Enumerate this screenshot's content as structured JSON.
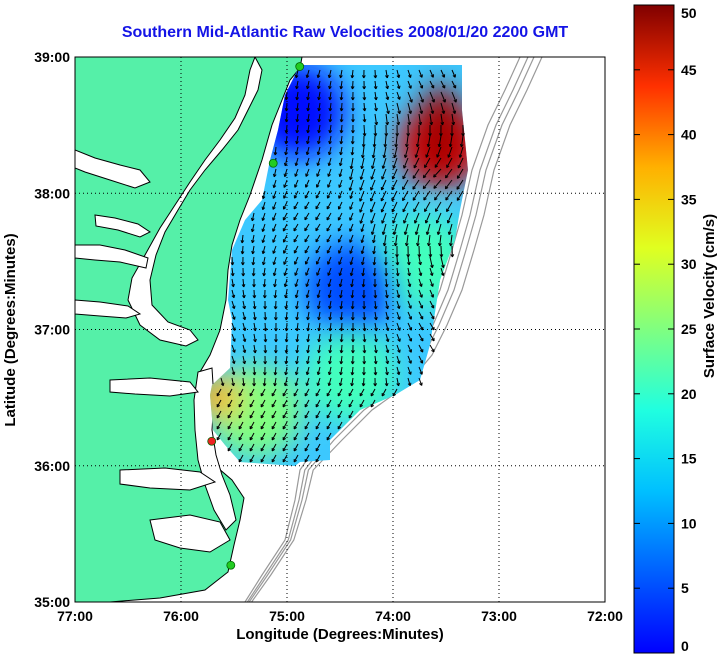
{
  "title": "Southern Mid-Atlantic Raw Velocities 2008/01/20 2200 GMT",
  "xlabel": "Longitude (Degrees:Minutes)",
  "ylabel": "Latitude (Degrees:Minutes)",
  "x_ticks": [
    "77:00",
    "76:00",
    "75:00",
    "74:00",
    "73:00",
    "72:00"
  ],
  "y_ticks": [
    "39:00",
    "38:00",
    "37:00",
    "36:00",
    "35:00"
  ],
  "colorbar": {
    "label": "Surface Velocity (cm/s)",
    "ticks": [
      "0",
      "5",
      "10",
      "15",
      "20",
      "25",
      "30",
      "35",
      "40",
      "45",
      "50"
    ],
    "min": 0,
    "max": 50,
    "colormap": "jet"
  },
  "colors": {
    "title": "#1414e6",
    "land": "#55f0a8",
    "coast": "#000000",
    "bathymetry": "#999999",
    "station_green": "#22cc22",
    "station_red": "#ee2222"
  },
  "chart_data": {
    "type": "heatmap",
    "title": "Southern Mid-Atlantic Raw Velocities 2008/01/20 2200 GMT",
    "xlabel": "Longitude (Degrees:Minutes)",
    "ylabel": "Latitude (Degrees:Minutes)",
    "xlim": [
      -77,
      -72
    ],
    "ylim": [
      35,
      39
    ],
    "value_label": "Surface Velocity (cm/s)",
    "value_range": [
      0,
      50
    ],
    "grid": true,
    "stations": [
      {
        "lon": -74.88,
        "lat": 38.93,
        "color": "green"
      },
      {
        "lon": -75.13,
        "lat": 38.22,
        "color": "green"
      },
      {
        "lon": -75.71,
        "lat": 36.18,
        "color": "red"
      },
      {
        "lon": -75.53,
        "lat": 35.27,
        "color": "green"
      }
    ],
    "speed_regions": [
      {
        "lon_center": -73.55,
        "lat_center": 38.35,
        "speed": 45
      },
      {
        "lon_center": -73.7,
        "lat_center": 37.5,
        "speed": 22
      },
      {
        "lon_center": -74.9,
        "lat_center": 38.6,
        "speed": 7
      },
      {
        "lon_center": -74.4,
        "lat_center": 37.3,
        "speed": 10
      },
      {
        "lon_center": -74.4,
        "lat_center": 36.65,
        "speed": 22
      },
      {
        "lon_center": -75.3,
        "lat_center": 36.4,
        "speed": 25
      },
      {
        "lon_center": -75.65,
        "lat_center": 36.5,
        "speed": 35
      }
    ]
  }
}
